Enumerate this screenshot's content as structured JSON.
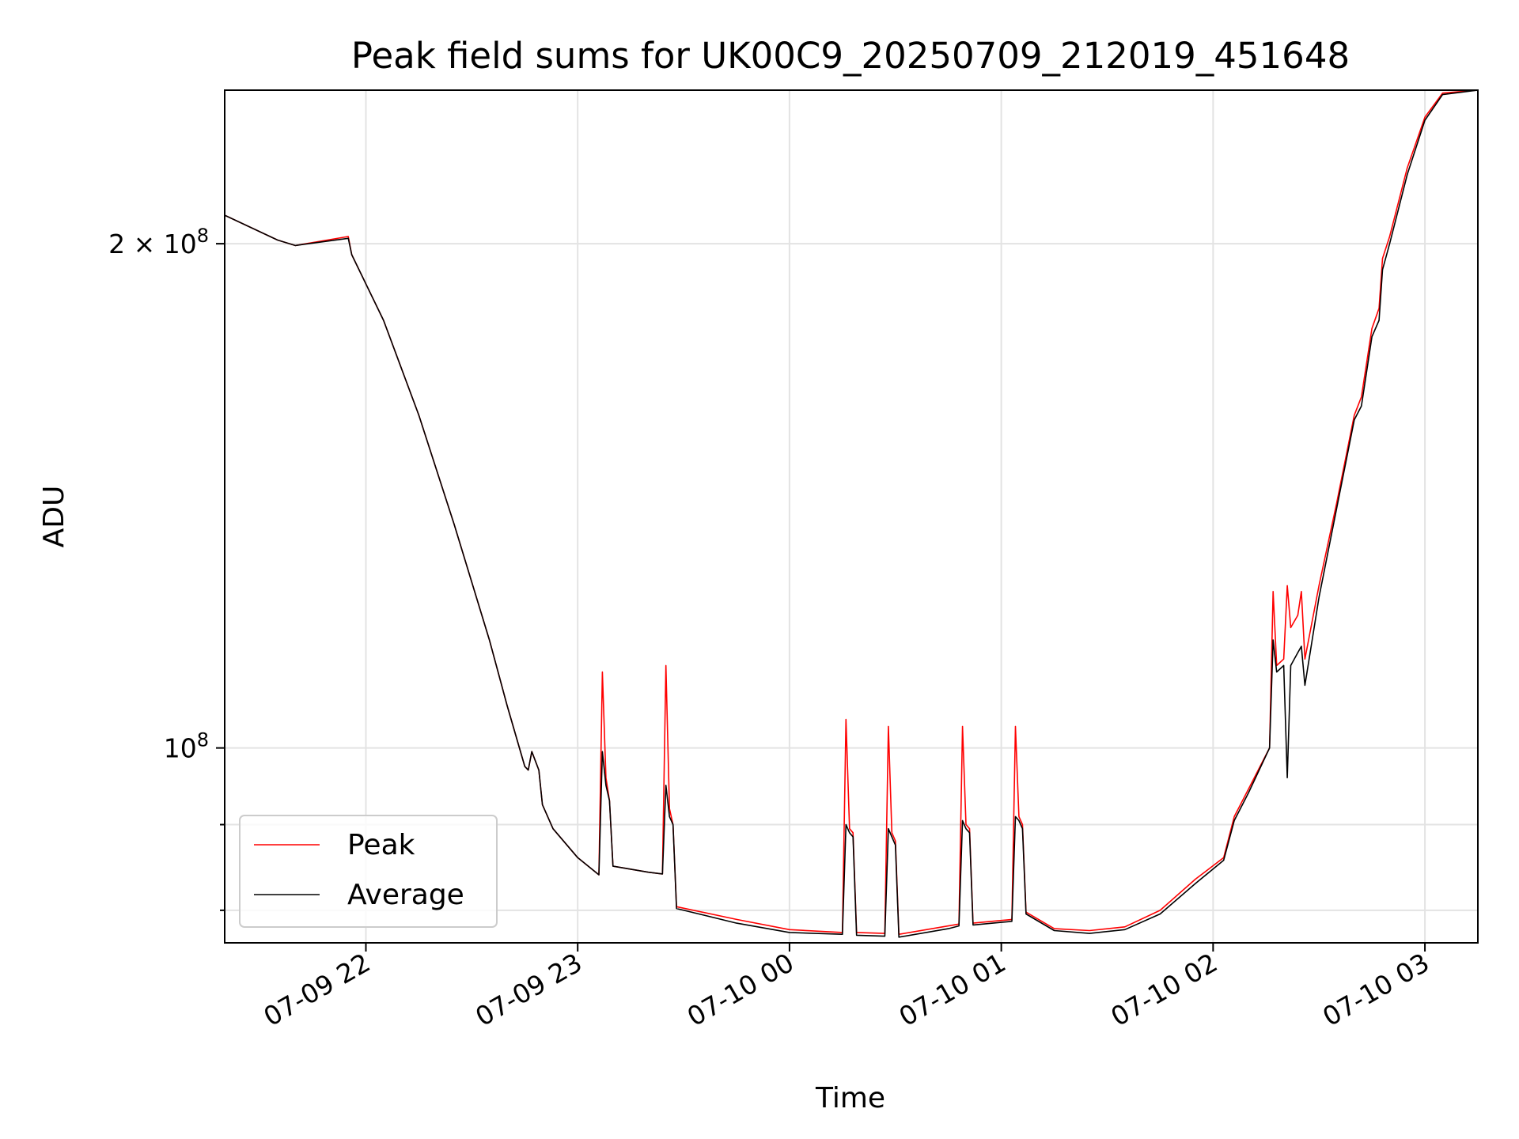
{
  "chart_data": {
    "type": "line",
    "title": "Peak field sums for UK00C9_20250709_212019_451648",
    "xlabel": "Time",
    "ylabel": "ADU",
    "yscale": "log",
    "grid": true,
    "legend_position": "lower-left",
    "xlim": [
      "2025-07-09 21:20",
      "2025-07-10 03:15"
    ],
    "ylim": [
      76500000,
      247000000
    ],
    "x_ticks": [
      {
        "t": "2025-07-09 22:00",
        "label": "07-09 22"
      },
      {
        "t": "2025-07-09 23:00",
        "label": "07-09 23"
      },
      {
        "t": "2025-07-10 00:00",
        "label": "07-10 00"
      },
      {
        "t": "2025-07-10 01:00",
        "label": "07-10 01"
      },
      {
        "t": "2025-07-10 02:00",
        "label": "07-10 02"
      },
      {
        "t": "2025-07-10 03:00",
        "label": "07-10 03"
      }
    ],
    "y_ticks_major": [
      {
        "value": 100000000,
        "base": "10",
        "exp": "8",
        "coef": ""
      },
      {
        "value": 200000000,
        "base": "10",
        "exp": "8",
        "coef": "2 × "
      }
    ],
    "y_ticks_minor": [
      80000000,
      90000000
    ],
    "series": [
      {
        "name": "Peak",
        "color": "#ff0000",
        "points": [
          [
            "2025-07-09 21:20",
            208000000
          ],
          [
            "2025-07-09 21:35",
            201000000
          ],
          [
            "2025-07-09 21:40",
            199500000
          ],
          [
            "2025-07-09 21:55",
            202000000
          ],
          [
            "2025-07-09 21:56",
            197000000
          ],
          [
            "2025-07-09 22:05",
            180000000
          ],
          [
            "2025-07-09 22:15",
            158000000
          ],
          [
            "2025-07-09 22:25",
            136000000
          ],
          [
            "2025-07-09 22:35",
            116000000
          ],
          [
            "2025-07-09 22:40",
            106000000
          ],
          [
            "2025-07-09 22:45",
            97500000
          ],
          [
            "2025-07-09 22:46",
            97000000
          ],
          [
            "2025-07-09 22:47",
            99500000
          ],
          [
            "2025-07-09 22:49",
            97000000
          ],
          [
            "2025-07-09 22:50",
            92500000
          ],
          [
            "2025-07-09 22:53",
            89500000
          ],
          [
            "2025-07-09 23:00",
            86000000
          ],
          [
            "2025-07-09 23:06",
            84000000
          ],
          [
            "2025-07-09 23:07",
            111000000
          ],
          [
            "2025-07-09 23:08",
            96000000
          ],
          [
            "2025-07-09 23:09",
            93000000
          ],
          [
            "2025-07-09 23:10",
            85000000
          ],
          [
            "2025-07-09 23:20",
            84300000
          ],
          [
            "2025-07-09 23:24",
            84100000
          ],
          [
            "2025-07-09 23:25",
            112000000
          ],
          [
            "2025-07-09 23:26",
            92000000
          ],
          [
            "2025-07-09 23:27",
            90000000
          ],
          [
            "2025-07-09 23:28",
            80400000
          ],
          [
            "2025-07-09 23:45",
            79000000
          ],
          [
            "2025-07-10 00:00",
            77900000
          ],
          [
            "2025-07-10 00:15",
            77600000
          ],
          [
            "2025-07-10 00:16",
            104000000
          ],
          [
            "2025-07-10 00:17",
            89500000
          ],
          [
            "2025-07-10 00:18",
            89000000
          ],
          [
            "2025-07-10 00:19",
            77600000
          ],
          [
            "2025-07-10 00:27",
            77500000
          ],
          [
            "2025-07-10 00:28",
            103000000
          ],
          [
            "2025-07-10 00:29",
            89000000
          ],
          [
            "2025-07-10 00:30",
            88000000
          ],
          [
            "2025-07-10 00:31",
            77400000
          ],
          [
            "2025-07-10 00:45",
            78300000
          ],
          [
            "2025-07-10 00:48",
            78500000
          ],
          [
            "2025-07-10 00:49",
            103000000
          ],
          [
            "2025-07-10 00:50",
            90000000
          ],
          [
            "2025-07-10 00:51",
            89500000
          ],
          [
            "2025-07-10 00:52",
            78600000
          ],
          [
            "2025-07-10 01:03",
            79000000
          ],
          [
            "2025-07-10 01:04",
            103000000
          ],
          [
            "2025-07-10 01:05",
            91000000
          ],
          [
            "2025-07-10 01:06",
            90000000
          ],
          [
            "2025-07-10 01:07",
            79800000
          ],
          [
            "2025-07-10 01:15",
            78000000
          ],
          [
            "2025-07-10 01:25",
            77800000
          ],
          [
            "2025-07-10 01:35",
            78200000
          ],
          [
            "2025-07-10 01:45",
            80000000
          ],
          [
            "2025-07-10 01:55",
            83500000
          ],
          [
            "2025-07-10 02:03",
            86000000
          ],
          [
            "2025-07-10 02:06",
            91000000
          ],
          [
            "2025-07-10 02:10",
            94500000
          ],
          [
            "2025-07-10 02:16",
            100000000
          ],
          [
            "2025-07-10 02:17",
            124000000
          ],
          [
            "2025-07-10 02:18",
            112000000
          ],
          [
            "2025-07-10 02:20",
            113000000
          ],
          [
            "2025-07-10 02:21",
            125000000
          ],
          [
            "2025-07-10 02:22",
            118000000
          ],
          [
            "2025-07-10 02:24",
            120000000
          ],
          [
            "2025-07-10 02:25",
            124000000
          ],
          [
            "2025-07-10 02:26",
            113000000
          ],
          [
            "2025-07-10 02:30",
            125000000
          ],
          [
            "2025-07-10 02:35",
            140000000
          ],
          [
            "2025-07-10 02:40",
            158000000
          ],
          [
            "2025-07-10 02:42",
            162000000
          ],
          [
            "2025-07-10 02:45",
            178000000
          ],
          [
            "2025-07-10 02:47",
            183000000
          ],
          [
            "2025-07-10 02:48",
            196000000
          ],
          [
            "2025-07-10 02:50",
            202000000
          ],
          [
            "2025-07-10 02:55",
            222000000
          ],
          [
            "2025-07-10 03:00",
            238000000
          ],
          [
            "2025-07-10 03:05",
            246000000
          ],
          [
            "2025-07-10 03:15",
            247000000
          ]
        ]
      },
      {
        "name": "Average",
        "color": "#000000",
        "points": [
          [
            "2025-07-09 21:20",
            208000000
          ],
          [
            "2025-07-09 21:35",
            201000000
          ],
          [
            "2025-07-09 21:40",
            199500000
          ],
          [
            "2025-07-09 21:55",
            201500000
          ],
          [
            "2025-07-09 21:56",
            197000000
          ],
          [
            "2025-07-09 22:05",
            180000000
          ],
          [
            "2025-07-09 22:15",
            158000000
          ],
          [
            "2025-07-09 22:25",
            136000000
          ],
          [
            "2025-07-09 22:35",
            116000000
          ],
          [
            "2025-07-09 22:40",
            106000000
          ],
          [
            "2025-07-09 22:45",
            97500000
          ],
          [
            "2025-07-09 22:46",
            97000000
          ],
          [
            "2025-07-09 22:47",
            99500000
          ],
          [
            "2025-07-09 22:49",
            97000000
          ],
          [
            "2025-07-09 22:50",
            92500000
          ],
          [
            "2025-07-09 22:53",
            89500000
          ],
          [
            "2025-07-09 23:00",
            86000000
          ],
          [
            "2025-07-09 23:06",
            84000000
          ],
          [
            "2025-07-09 23:07",
            99500000
          ],
          [
            "2025-07-09 23:08",
            95000000
          ],
          [
            "2025-07-09 23:09",
            93000000
          ],
          [
            "2025-07-09 23:10",
            85000000
          ],
          [
            "2025-07-09 23:20",
            84300000
          ],
          [
            "2025-07-09 23:24",
            84100000
          ],
          [
            "2025-07-09 23:25",
            95000000
          ],
          [
            "2025-07-09 23:26",
            91000000
          ],
          [
            "2025-07-09 23:27",
            90000000
          ],
          [
            "2025-07-09 23:28",
            80200000
          ],
          [
            "2025-07-09 23:45",
            78600000
          ],
          [
            "2025-07-10 00:00",
            77600000
          ],
          [
            "2025-07-10 00:15",
            77400000
          ],
          [
            "2025-07-10 00:16",
            90000000
          ],
          [
            "2025-07-10 00:17",
            89000000
          ],
          [
            "2025-07-10 00:18",
            88500000
          ],
          [
            "2025-07-10 00:19",
            77300000
          ],
          [
            "2025-07-10 00:27",
            77200000
          ],
          [
            "2025-07-10 00:28",
            89500000
          ],
          [
            "2025-07-10 00:29",
            88500000
          ],
          [
            "2025-07-10 00:30",
            87500000
          ],
          [
            "2025-07-10 00:31",
            77100000
          ],
          [
            "2025-07-10 00:45",
            78000000
          ],
          [
            "2025-07-10 00:48",
            78300000
          ],
          [
            "2025-07-10 00:49",
            90500000
          ],
          [
            "2025-07-10 00:50",
            89500000
          ],
          [
            "2025-07-10 00:51",
            89000000
          ],
          [
            "2025-07-10 00:52",
            78400000
          ],
          [
            "2025-07-10 01:03",
            78800000
          ],
          [
            "2025-07-10 01:04",
            91000000
          ],
          [
            "2025-07-10 01:05",
            90500000
          ],
          [
            "2025-07-10 01:06",
            89500000
          ],
          [
            "2025-07-10 01:07",
            79600000
          ],
          [
            "2025-07-10 01:15",
            77800000
          ],
          [
            "2025-07-10 01:25",
            77500000
          ],
          [
            "2025-07-10 01:35",
            77900000
          ],
          [
            "2025-07-10 01:45",
            79600000
          ],
          [
            "2025-07-10 01:55",
            83000000
          ],
          [
            "2025-07-10 02:03",
            85700000
          ],
          [
            "2025-07-10 02:06",
            90500000
          ],
          [
            "2025-07-10 02:10",
            94000000
          ],
          [
            "2025-07-10 02:16",
            100000000
          ],
          [
            "2025-07-10 02:17",
            116000000
          ],
          [
            "2025-07-10 02:18",
            111000000
          ],
          [
            "2025-07-10 02:20",
            112000000
          ],
          [
            "2025-07-10 02:21",
            96000000
          ],
          [
            "2025-07-10 02:22",
            112000000
          ],
          [
            "2025-07-10 02:24",
            114000000
          ],
          [
            "2025-07-10 02:25",
            115000000
          ],
          [
            "2025-07-10 02:26",
            109000000
          ],
          [
            "2025-07-10 02:30",
            123000000
          ],
          [
            "2025-07-10 02:35",
            139000000
          ],
          [
            "2025-07-10 02:40",
            157000000
          ],
          [
            "2025-07-10 02:42",
            160000000
          ],
          [
            "2025-07-10 02:45",
            176000000
          ],
          [
            "2025-07-10 02:47",
            180000000
          ],
          [
            "2025-07-10 02:48",
            193000000
          ],
          [
            "2025-07-10 02:50",
            200000000
          ],
          [
            "2025-07-10 02:55",
            220000000
          ],
          [
            "2025-07-10 03:00",
            237000000
          ],
          [
            "2025-07-10 03:05",
            245500000
          ],
          [
            "2025-07-10 03:15",
            247000000
          ]
        ]
      }
    ]
  }
}
